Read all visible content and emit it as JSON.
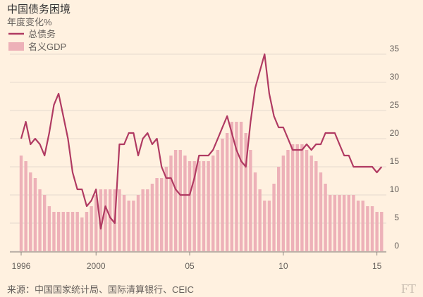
{
  "chart_data": {
    "type": "combo",
    "title": "中国债务困境",
    "subtitle": "年度变化%",
    "categories": [
      "1996",
      null,
      null,
      null,
      null,
      null,
      null,
      null,
      null,
      null,
      null,
      null,
      null,
      null,
      null,
      null,
      "2000",
      null,
      null,
      null,
      null,
      null,
      null,
      null,
      null,
      null,
      null,
      null,
      null,
      null,
      null,
      null,
      null,
      null,
      null,
      null,
      "05",
      null,
      null,
      null,
      null,
      null,
      null,
      null,
      null,
      null,
      null,
      null,
      null,
      null,
      null,
      null,
      null,
      null,
      null,
      null,
      "10",
      null,
      null,
      null,
      null,
      null,
      null,
      null,
      null,
      null,
      null,
      null,
      null,
      null,
      null,
      null,
      null,
      null,
      null,
      null,
      "15",
      null
    ],
    "series": [
      {
        "name": "总债务",
        "type": "line",
        "color": "#b03a62",
        "values": [
          20,
          23,
          19,
          20,
          19,
          17,
          21,
          26,
          28,
          24,
          20,
          14,
          11,
          11,
          8,
          9,
          11,
          4,
          8,
          6,
          5,
          19,
          19,
          21,
          21,
          17,
          20,
          21,
          19,
          20,
          15,
          13,
          13,
          11,
          10,
          10,
          10,
          13,
          17,
          17,
          17,
          18,
          20,
          22,
          24,
          21,
          18,
          16,
          15,
          23,
          29,
          32,
          35,
          28,
          24,
          22,
          22,
          20,
          18,
          18,
          18,
          19,
          18,
          19,
          19,
          21,
          21,
          21,
          19,
          17,
          17,
          15,
          15,
          15,
          15,
          15,
          14,
          15
        ]
      },
      {
        "name": "名义GDP",
        "type": "bar",
        "color": "#edb1b8",
        "values": [
          17,
          16,
          14,
          13,
          11,
          10,
          8,
          7,
          7,
          7,
          7,
          7,
          7,
          6,
          7,
          8,
          10,
          11,
          11,
          11,
          11,
          11,
          10,
          9,
          9,
          10,
          11,
          11,
          12,
          13,
          13,
          15,
          17,
          18,
          18,
          17,
          16,
          16,
          16,
          16,
          16,
          17,
          18,
          20,
          21,
          23,
          23,
          23,
          21,
          18,
          14,
          11,
          9,
          9,
          12,
          15,
          17,
          18,
          19,
          19,
          19,
          18,
          17,
          16,
          14,
          12,
          10,
          10,
          10,
          10,
          10,
          10,
          9,
          9,
          8,
          8,
          7,
          7
        ]
      }
    ],
    "ylim": [
      0,
      35
    ],
    "yticks": [
      0,
      5,
      10,
      15,
      20,
      25,
      30,
      35
    ],
    "grid": true,
    "source": "来源：中国国家统计局、国际清算银行、CEIC",
    "logo": "FT"
  }
}
